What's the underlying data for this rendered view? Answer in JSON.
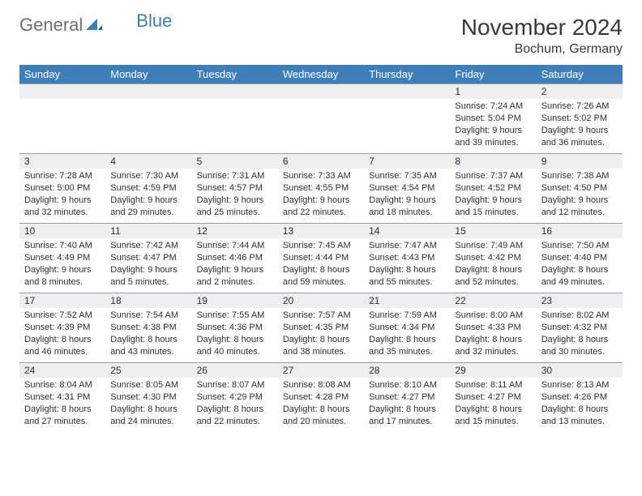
{
  "header": {
    "logo_general": "General",
    "logo_blue": "Blue",
    "title": "November 2024",
    "location": "Bochum, Germany"
  },
  "dayNames": [
    "Sunday",
    "Monday",
    "Tuesday",
    "Wednesday",
    "Thursday",
    "Friday",
    "Saturday"
  ],
  "colors": {
    "header_bg": "#3e7fba",
    "daynum_bg": "#eceeef",
    "border": "#8fa1b1",
    "text": "#2a2f33",
    "logo_gray": "#6b7176",
    "logo_blue": "#3e7fba"
  },
  "weeks": [
    [
      null,
      null,
      null,
      null,
      null,
      {
        "num": "1",
        "sunrise": "Sunrise: 7:24 AM",
        "sunset": "Sunset: 5:04 PM",
        "day1": "Daylight: 9 hours",
        "day2": "and 39 minutes."
      },
      {
        "num": "2",
        "sunrise": "Sunrise: 7:26 AM",
        "sunset": "Sunset: 5:02 PM",
        "day1": "Daylight: 9 hours",
        "day2": "and 36 minutes."
      }
    ],
    [
      {
        "num": "3",
        "sunrise": "Sunrise: 7:28 AM",
        "sunset": "Sunset: 5:00 PM",
        "day1": "Daylight: 9 hours",
        "day2": "and 32 minutes."
      },
      {
        "num": "4",
        "sunrise": "Sunrise: 7:30 AM",
        "sunset": "Sunset: 4:59 PM",
        "day1": "Daylight: 9 hours",
        "day2": "and 29 minutes."
      },
      {
        "num": "5",
        "sunrise": "Sunrise: 7:31 AM",
        "sunset": "Sunset: 4:57 PM",
        "day1": "Daylight: 9 hours",
        "day2": "and 25 minutes."
      },
      {
        "num": "6",
        "sunrise": "Sunrise: 7:33 AM",
        "sunset": "Sunset: 4:55 PM",
        "day1": "Daylight: 9 hours",
        "day2": "and 22 minutes."
      },
      {
        "num": "7",
        "sunrise": "Sunrise: 7:35 AM",
        "sunset": "Sunset: 4:54 PM",
        "day1": "Daylight: 9 hours",
        "day2": "and 18 minutes."
      },
      {
        "num": "8",
        "sunrise": "Sunrise: 7:37 AM",
        "sunset": "Sunset: 4:52 PM",
        "day1": "Daylight: 9 hours",
        "day2": "and 15 minutes."
      },
      {
        "num": "9",
        "sunrise": "Sunrise: 7:38 AM",
        "sunset": "Sunset: 4:50 PM",
        "day1": "Daylight: 9 hours",
        "day2": "and 12 minutes."
      }
    ],
    [
      {
        "num": "10",
        "sunrise": "Sunrise: 7:40 AM",
        "sunset": "Sunset: 4:49 PM",
        "day1": "Daylight: 9 hours",
        "day2": "and 8 minutes."
      },
      {
        "num": "11",
        "sunrise": "Sunrise: 7:42 AM",
        "sunset": "Sunset: 4:47 PM",
        "day1": "Daylight: 9 hours",
        "day2": "and 5 minutes."
      },
      {
        "num": "12",
        "sunrise": "Sunrise: 7:44 AM",
        "sunset": "Sunset: 4:46 PM",
        "day1": "Daylight: 9 hours",
        "day2": "and 2 minutes."
      },
      {
        "num": "13",
        "sunrise": "Sunrise: 7:45 AM",
        "sunset": "Sunset: 4:44 PM",
        "day1": "Daylight: 8 hours",
        "day2": "and 59 minutes."
      },
      {
        "num": "14",
        "sunrise": "Sunrise: 7:47 AM",
        "sunset": "Sunset: 4:43 PM",
        "day1": "Daylight: 8 hours",
        "day2": "and 55 minutes."
      },
      {
        "num": "15",
        "sunrise": "Sunrise: 7:49 AM",
        "sunset": "Sunset: 4:42 PM",
        "day1": "Daylight: 8 hours",
        "day2": "and 52 minutes."
      },
      {
        "num": "16",
        "sunrise": "Sunrise: 7:50 AM",
        "sunset": "Sunset: 4:40 PM",
        "day1": "Daylight: 8 hours",
        "day2": "and 49 minutes."
      }
    ],
    [
      {
        "num": "17",
        "sunrise": "Sunrise: 7:52 AM",
        "sunset": "Sunset: 4:39 PM",
        "day1": "Daylight: 8 hours",
        "day2": "and 46 minutes."
      },
      {
        "num": "18",
        "sunrise": "Sunrise: 7:54 AM",
        "sunset": "Sunset: 4:38 PM",
        "day1": "Daylight: 8 hours",
        "day2": "and 43 minutes."
      },
      {
        "num": "19",
        "sunrise": "Sunrise: 7:55 AM",
        "sunset": "Sunset: 4:36 PM",
        "day1": "Daylight: 8 hours",
        "day2": "and 40 minutes."
      },
      {
        "num": "20",
        "sunrise": "Sunrise: 7:57 AM",
        "sunset": "Sunset: 4:35 PM",
        "day1": "Daylight: 8 hours",
        "day2": "and 38 minutes."
      },
      {
        "num": "21",
        "sunrise": "Sunrise: 7:59 AM",
        "sunset": "Sunset: 4:34 PM",
        "day1": "Daylight: 8 hours",
        "day2": "and 35 minutes."
      },
      {
        "num": "22",
        "sunrise": "Sunrise: 8:00 AM",
        "sunset": "Sunset: 4:33 PM",
        "day1": "Daylight: 8 hours",
        "day2": "and 32 minutes."
      },
      {
        "num": "23",
        "sunrise": "Sunrise: 8:02 AM",
        "sunset": "Sunset: 4:32 PM",
        "day1": "Daylight: 8 hours",
        "day2": "and 30 minutes."
      }
    ],
    [
      {
        "num": "24",
        "sunrise": "Sunrise: 8:04 AM",
        "sunset": "Sunset: 4:31 PM",
        "day1": "Daylight: 8 hours",
        "day2": "and 27 minutes."
      },
      {
        "num": "25",
        "sunrise": "Sunrise: 8:05 AM",
        "sunset": "Sunset: 4:30 PM",
        "day1": "Daylight: 8 hours",
        "day2": "and 24 minutes."
      },
      {
        "num": "26",
        "sunrise": "Sunrise: 8:07 AM",
        "sunset": "Sunset: 4:29 PM",
        "day1": "Daylight: 8 hours",
        "day2": "and 22 minutes."
      },
      {
        "num": "27",
        "sunrise": "Sunrise: 8:08 AM",
        "sunset": "Sunset: 4:28 PM",
        "day1": "Daylight: 8 hours",
        "day2": "and 20 minutes."
      },
      {
        "num": "28",
        "sunrise": "Sunrise: 8:10 AM",
        "sunset": "Sunset: 4:27 PM",
        "day1": "Daylight: 8 hours",
        "day2": "and 17 minutes."
      },
      {
        "num": "29",
        "sunrise": "Sunrise: 8:11 AM",
        "sunset": "Sunset: 4:27 PM",
        "day1": "Daylight: 8 hours",
        "day2": "and 15 minutes."
      },
      {
        "num": "30",
        "sunrise": "Sunrise: 8:13 AM",
        "sunset": "Sunset: 4:26 PM",
        "day1": "Daylight: 8 hours",
        "day2": "and 13 minutes."
      }
    ]
  ]
}
